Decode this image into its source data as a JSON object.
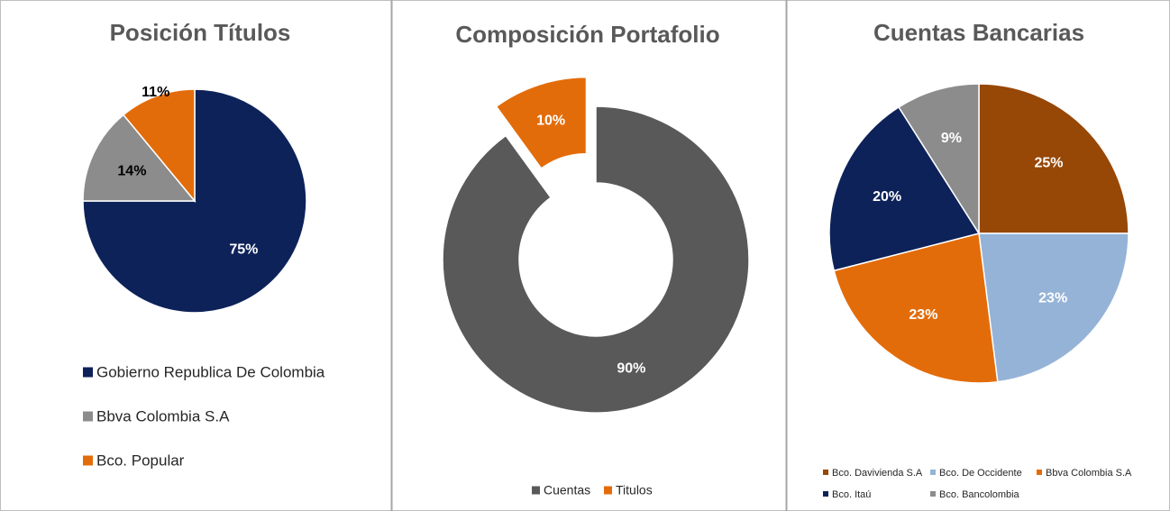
{
  "chart_data": [
    {
      "type": "pie",
      "title": "Posición Títulos",
      "categories": [
        "Gobierno Republica De Colombia",
        "Bbva Colombia S.A",
        "Bco. Popular"
      ],
      "values": [
        75,
        14,
        11
      ],
      "value_labels": [
        "75%",
        "14%",
        "11%"
      ],
      "colors": [
        "#0d2259",
        "#8c8c8c",
        "#e36c0a"
      ],
      "legend": "bottom"
    },
    {
      "type": "donut",
      "title": "Composición Portafolio",
      "categories": [
        "Cuentas",
        "Titulos"
      ],
      "values": [
        90,
        10
      ],
      "value_labels": [
        "90%",
        "10%"
      ],
      "colors": [
        "#595959",
        "#e36c0a"
      ],
      "legend": "bottom"
    },
    {
      "type": "pie",
      "title": "Cuentas Bancarias",
      "categories": [
        "Bco. Davivienda S.A",
        "Bco. De Occidente",
        "Bbva Colombia S.A",
        "Bco. Itaú",
        "Bco. Bancolombia"
      ],
      "values": [
        25,
        23,
        23,
        20,
        9
      ],
      "value_labels": [
        "25%",
        "23%",
        "23%",
        "20%",
        "9%"
      ],
      "colors": [
        "#974706",
        "#95b3d7",
        "#e36c0a",
        "#0d2259",
        "#8c8c8c"
      ],
      "legend": "bottom"
    }
  ]
}
